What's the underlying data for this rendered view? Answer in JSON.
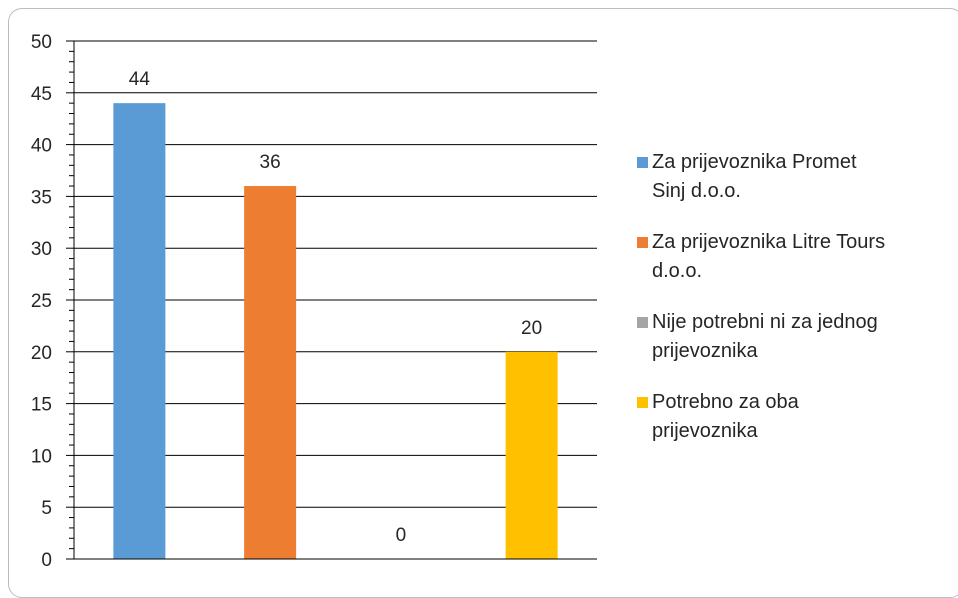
{
  "colors": {
    "series_1": "#5B9BD5",
    "series_2": "#ED7D31",
    "series_3": "#A5A5A5",
    "series_4": "#FFC000"
  },
  "chart_data": {
    "type": "bar",
    "categories": [
      "Za prijevoznika Promet Sinj d.o.o.",
      "Za prijevoznika Litre Tours d.o.o.",
      "Nije potrebni ni za jednog prijevoznika",
      "Potrebno za oba prijevoznika"
    ],
    "values": [
      44,
      36,
      0,
      20
    ],
    "data_labels": [
      "44",
      "36",
      "0",
      "20"
    ],
    "ylim": [
      0,
      50
    ],
    "y_ticks": [
      "0",
      "5",
      "10",
      "15",
      "20",
      "25",
      "30",
      "35",
      "40",
      "45",
      "50"
    ],
    "grid": true,
    "legend_position": "right",
    "legend": [
      {
        "label": "Za prijevoznika Promet Sinj d.o.o.",
        "line1": "Za prijevoznika Promet",
        "line2": "Sinj d.o.o.",
        "color": "#5B9BD5"
      },
      {
        "label": "Za prijevoznika Litre Tours d.o.o.",
        "line1": "Za prijevoznika Litre Tours",
        "line2": "d.o.o.",
        "color": "#ED7D31"
      },
      {
        "label": "Nije potrebni ni za jednog prijevoznika",
        "line1": "Nije potrebni ni za jednog",
        "line2": "prijevoznika",
        "color": "#A5A5A5"
      },
      {
        "label": "Potrebno za oba prijevoznika",
        "line1": "Potrebno za oba",
        "line2": "prijevoznika",
        "color": "#FFC000"
      }
    ]
  }
}
